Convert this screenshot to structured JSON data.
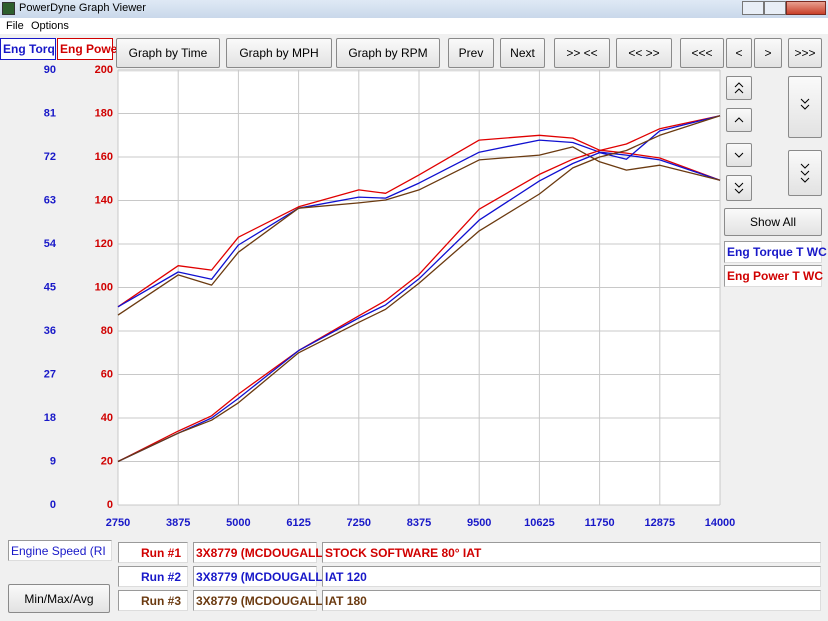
{
  "window": {
    "title": "PowerDyne Graph Viewer"
  },
  "menu": [
    "File",
    "Options"
  ],
  "tabs": [
    "Eng Torq",
    "Eng Powe"
  ],
  "toolbar": [
    "Graph by Time",
    "Graph by MPH",
    "Graph by RPM",
    "Prev",
    "Next",
    ">> <<",
    "<< >>",
    "<<<",
    "<",
    ">",
    ">>>"
  ],
  "show_all": "Show All",
  "x_axis_box": "Engine Speed (RI",
  "min_max_button": "Min/Max/Avg",
  "runs": [
    {
      "label": "Run #1",
      "vehicle": "3X8779 (MCDOUGALL",
      "note": "STOCK SOFTWARE 80° IAT"
    },
    {
      "label": "Run #2",
      "vehicle": "3X8779 (MCDOUGALL",
      "note": "IAT 120"
    },
    {
      "label": "Run #3",
      "vehicle": "3X8779 (MCDOUGALL",
      "note": "IAT 180"
    }
  ],
  "chart_data": {
    "type": "line",
    "legend": [
      "Eng Torque T WC",
      "Eng Power T WC"
    ],
    "x": [
      2750,
      3875,
      4500,
      5000,
      6125,
      7250,
      7750,
      8375,
      9500,
      10625,
      11250,
      11750,
      12250,
      12875,
      14000
    ],
    "xlim": [
      2750,
      14000
    ],
    "xticks": [
      2750,
      3875,
      5000,
      6125,
      7250,
      8375,
      9500,
      10625,
      11750,
      12875,
      14000
    ],
    "ylim": [
      0,
      200
    ],
    "yticks": [
      0,
      20,
      40,
      60,
      80,
      100,
      120,
      140,
      160,
      180,
      200
    ],
    "y2lim": [
      0,
      90
    ],
    "y2ticks": [
      0,
      9,
      18,
      27,
      36,
      45,
      54,
      63,
      72,
      81,
      90
    ],
    "grid": true,
    "series": [
      {
        "color": "#e00000",
        "axis": "y2",
        "values": [
          41.0,
          49.5,
          48.6,
          55.4,
          61.7,
          65.2,
          64.5,
          68.3,
          75.5,
          76.5,
          75.9,
          73.4,
          72.8,
          71.8,
          67.2
        ]
      },
      {
        "color": "#1010d0",
        "axis": "y2",
        "values": [
          41.0,
          48.2,
          46.7,
          53.8,
          61.4,
          63.7,
          63.5,
          66.6,
          73.0,
          75.5,
          75.0,
          73.0,
          72.4,
          71.4,
          67.2
        ]
      },
      {
        "color": "#6b3a10",
        "axis": "y2",
        "values": [
          39.3,
          47.6,
          45.5,
          52.3,
          61.4,
          62.5,
          63.1,
          65.2,
          71.4,
          72.4,
          74.1,
          71.0,
          69.3,
          70.3,
          67.2
        ]
      },
      {
        "color": "#e00000",
        "values": [
          20,
          34,
          41,
          51,
          71,
          87,
          94,
          106,
          136,
          152,
          159,
          163,
          166,
          173,
          179
        ]
      },
      {
        "color": "#1010d0",
        "values": [
          20,
          33,
          40,
          49,
          71,
          86,
          92,
          104,
          131,
          149,
          157,
          162,
          159,
          172,
          179
        ]
      },
      {
        "color": "#6b3a10",
        "values": [
          20,
          33,
          39,
          47,
          70,
          84,
          90,
          102,
          126,
          143,
          155,
          160,
          163,
          170,
          179
        ]
      }
    ]
  }
}
